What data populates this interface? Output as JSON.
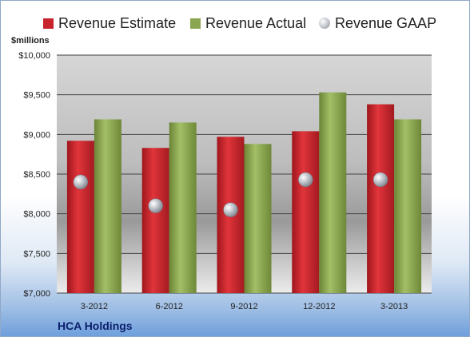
{
  "company": "HCA Holdings",
  "colors": {
    "estimate": "#c8242b",
    "actual": "#8aa650",
    "gaap": "#b8bcc4"
  },
  "chart_data": {
    "type": "bar",
    "title": "",
    "ylabel": "$millions",
    "xlabel": "",
    "categories": [
      "3-2012",
      "6-2012",
      "9-2012",
      "12-2012",
      "3-2013"
    ],
    "series": [
      {
        "name": "Revenue Estimate",
        "kind": "bar",
        "values": [
          8920,
          8830,
          8970,
          9040,
          9380
        ]
      },
      {
        "name": "Revenue Actual",
        "kind": "bar",
        "values": [
          9190,
          9150,
          8880,
          9530,
          9190
        ]
      },
      {
        "name": "Revenue GAAP",
        "kind": "marker",
        "values": [
          8400,
          8100,
          8050,
          8430,
          8430
        ]
      }
    ],
    "ylim": [
      7000,
      10000
    ],
    "ytick_labels": [
      "$7,000",
      "$7,500",
      "$8,000",
      "$8,500",
      "$9,000",
      "$9,500",
      "$10,000"
    ],
    "grid": true,
    "legend_position": "top"
  }
}
